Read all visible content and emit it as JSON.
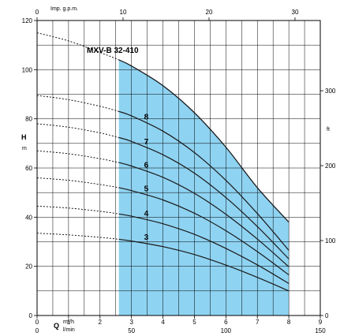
{
  "chart_data": {
    "type": "line",
    "title": "MXV-B 32-410",
    "axes": {
      "top": {
        "label": "Imp. g.p.m.",
        "ticks": [
          "0",
          "10",
          "20",
          "30"
        ],
        "values": [
          0,
          10,
          20,
          30
        ]
      },
      "left": {
        "label": "H",
        "unit": "m",
        "ticks": [
          "0",
          "20",
          "40",
          "60",
          "80",
          "100",
          "120"
        ],
        "values": [
          0,
          20,
          40,
          60,
          80,
          100,
          120
        ]
      },
      "right": {
        "label": "ft",
        "ticks": [
          "0",
          "100",
          "200",
          "300"
        ],
        "values": [
          0,
          100,
          200,
          300
        ]
      },
      "bottom_q": {
        "label": "Q",
        "unit_top": "m³/h",
        "unit_bottom": "l/min",
        "ticks": [
          "0",
          "1",
          "2",
          "3",
          "4",
          "5",
          "6",
          "7",
          "8",
          "9"
        ],
        "values": [
          0,
          1,
          2,
          3,
          4,
          5,
          6,
          7,
          8,
          9
        ]
      },
      "bottom_lmin": {
        "ticks": [
          "0",
          "50",
          "100",
          "150"
        ],
        "values": [
          0,
          50,
          100,
          150
        ]
      }
    },
    "xlim": [
      0,
      9
    ],
    "ylim": [
      0,
      120
    ],
    "grid": true,
    "operating_range": {
      "q_min": 2.6,
      "q_max": 8,
      "h_at_q_min": 104,
      "h_at_q_max": 38,
      "color": "#8fd3f2"
    },
    "x": [
      0,
      1,
      2,
      2.6,
      3,
      4,
      5,
      6,
      7,
      8
    ],
    "series": [
      {
        "name": "3",
        "values": [
          33.5,
          32.8,
          31.8,
          31,
          30.3,
          28,
          24.8,
          20.5,
          15.5,
          10
        ]
      },
      {
        "name": "4",
        "values": [
          44.5,
          43.7,
          42.4,
          41.3,
          40.4,
          37.3,
          33,
          27.3,
          20.6,
          13
        ]
      },
      {
        "name": "5",
        "values": [
          56,
          55,
          53.3,
          52,
          50.8,
          47,
          41.6,
          34.5,
          26,
          16.5
        ]
      },
      {
        "name": "6",
        "values": [
          67,
          65.8,
          63.8,
          62.2,
          60.8,
          56.2,
          49.7,
          41.2,
          31.1,
          19.8
        ]
      },
      {
        "name": "7",
        "values": [
          78,
          76.6,
          74.3,
          72.4,
          70.8,
          65.4,
          57.9,
          48,
          36.2,
          23
        ]
      },
      {
        "name": "8",
        "values": [
          89.5,
          87.8,
          85.1,
          83,
          81.2,
          75,
          66.3,
          55,
          41.5,
          26.5
        ]
      },
      {
        "name": "MXV-B 32-410",
        "values": [
          115,
          111.7,
          107,
          104,
          101.5,
          93.5,
          82.5,
          68.5,
          52,
          38
        ]
      }
    ]
  }
}
